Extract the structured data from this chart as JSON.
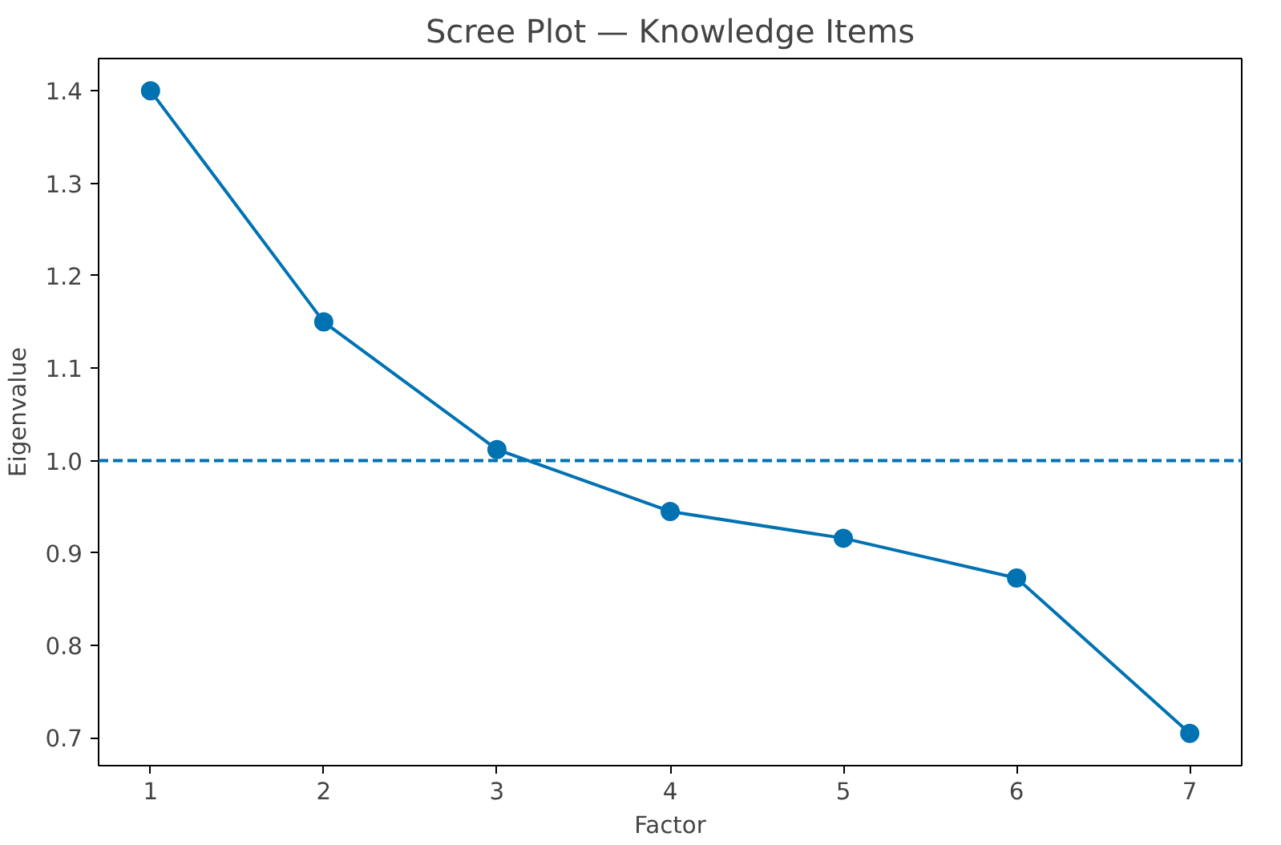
{
  "chart_data": {
    "type": "line",
    "title": "Scree Plot — Knowledge Items",
    "xlabel": "Factor",
    "ylabel": "Eigenvalue",
    "x": [
      1,
      2,
      3,
      4,
      5,
      6,
      7
    ],
    "series": [
      {
        "color": "#0072b2",
        "values": [
          1.4,
          1.15,
          1.012,
          0.945,
          0.916,
          0.873,
          0.705
        ]
      }
    ],
    "xlim": [
      0.7,
      7.3
    ],
    "ylim": [
      0.67,
      1.435
    ],
    "xticks": [
      1,
      2,
      3,
      4,
      5,
      6,
      7
    ],
    "yticks": [
      0.7,
      0.8,
      0.9,
      {
        "value": 1.0,
        "label": "1.0"
      },
      1.1,
      1.2,
      1.3,
      1.4
    ],
    "ref_lines": [
      {
        "axis": "y",
        "value": 1.0,
        "color": "#0072b2",
        "line_style": "dashed"
      }
    ],
    "marker": "circle",
    "line_style": "solid",
    "grid": false
  }
}
